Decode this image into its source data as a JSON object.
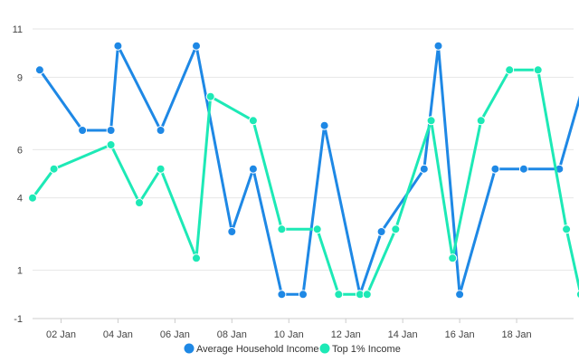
{
  "chart_data": {
    "type": "line",
    "title": "",
    "xlabel": "",
    "ylabel": "",
    "x_ticks": [
      "02 Jan",
      "04 Jan",
      "06 Jan",
      "08 Jan",
      "10 Jan",
      "12 Jan",
      "14 Jan",
      "16 Jan",
      "18 Jan"
    ],
    "y_ticks": [
      "-1",
      "1",
      "4",
      "6",
      "9",
      "11"
    ],
    "ylim": [
      -1,
      11
    ],
    "xlim": [
      "2021-01-01",
      "2021-01-20"
    ],
    "grid": "horizontal",
    "legend_position": "bottom-center",
    "series": [
      {
        "name": "Average Household Income",
        "color": "#1e88e5",
        "points": [
          {
            "x": "2021-01-01T06:00",
            "y": 9.3
          },
          {
            "x": "2021-01-02T18:00",
            "y": 6.8
          },
          {
            "x": "2021-01-03T18:00",
            "y": 6.8
          },
          {
            "x": "2021-01-04T00:00",
            "y": 10.3
          },
          {
            "x": "2021-01-05T12:00",
            "y": 6.8
          },
          {
            "x": "2021-01-06T18:00",
            "y": 10.3
          },
          {
            "x": "2021-01-08T00:00",
            "y": 2.6
          },
          {
            "x": "2021-01-08T18:00",
            "y": 5.2
          },
          {
            "x": "2021-01-09T18:00",
            "y": 0.0
          },
          {
            "x": "2021-01-10T12:00",
            "y": 0.0
          },
          {
            "x": "2021-01-11T06:00",
            "y": 7.0
          },
          {
            "x": "2021-01-12T12:00",
            "y": 0.0
          },
          {
            "x": "2021-01-13T06:00",
            "y": 2.6
          },
          {
            "x": "2021-01-14T18:00",
            "y": 5.2
          },
          {
            "x": "2021-01-15T06:00",
            "y": 10.3
          },
          {
            "x": "2021-01-16T00:00",
            "y": 0.0
          },
          {
            "x": "2021-01-17T06:00",
            "y": 5.2
          },
          {
            "x": "2021-01-18T06:00",
            "y": 5.2
          },
          {
            "x": "2021-01-19T12:00",
            "y": 5.2
          },
          {
            "x": "2021-01-20T12:00",
            "y": 9.3
          }
        ]
      },
      {
        "name": "Top 1% Income",
        "color": "#1de9b6",
        "points": [
          {
            "x": "2021-01-01T00:00",
            "y": 4.0
          },
          {
            "x": "2021-01-01T18:00",
            "y": 5.2
          },
          {
            "x": "2021-01-03T18:00",
            "y": 6.2
          },
          {
            "x": "2021-01-04T18:00",
            "y": 3.8
          },
          {
            "x": "2021-01-05T12:00",
            "y": 5.2
          },
          {
            "x": "2021-01-06T18:00",
            "y": 1.5
          },
          {
            "x": "2021-01-07T06:00",
            "y": 8.2
          },
          {
            "x": "2021-01-08T18:00",
            "y": 7.2
          },
          {
            "x": "2021-01-09T18:00",
            "y": 2.7
          },
          {
            "x": "2021-01-11T00:00",
            "y": 2.7
          },
          {
            "x": "2021-01-11T18:00",
            "y": 0.0
          },
          {
            "x": "2021-01-12T12:00",
            "y": 0.0
          },
          {
            "x": "2021-01-12T18:00",
            "y": 0.0
          },
          {
            "x": "2021-01-13T18:00",
            "y": 2.7
          },
          {
            "x": "2021-01-15T00:00",
            "y": 7.2
          },
          {
            "x": "2021-01-15T18:00",
            "y": 1.5
          },
          {
            "x": "2021-01-16T18:00",
            "y": 7.2
          },
          {
            "x": "2021-01-17T18:00",
            "y": 9.3
          },
          {
            "x": "2021-01-18T18:00",
            "y": 9.3
          },
          {
            "x": "2021-01-19T18:00",
            "y": 2.7
          },
          {
            "x": "2021-01-20T06:00",
            "y": 0.0
          }
        ]
      }
    ]
  }
}
